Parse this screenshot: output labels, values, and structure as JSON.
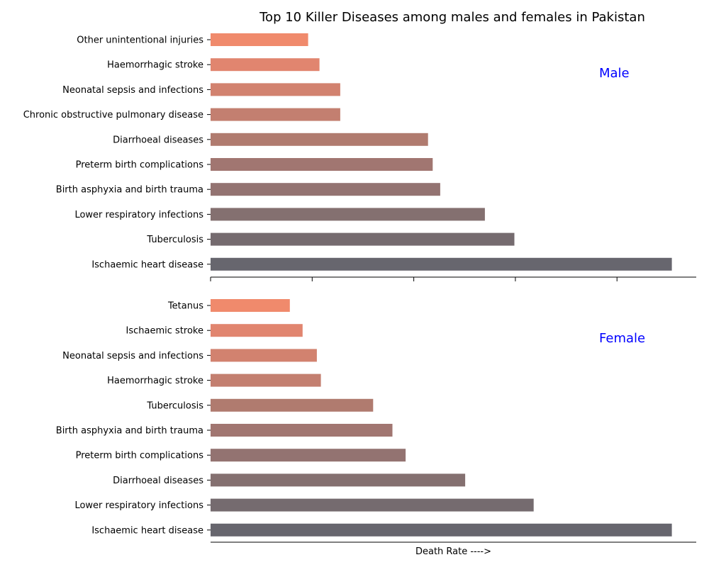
{
  "title": "Top 10 Killer Diseases among males and females in Pakistan",
  "chart_data": [
    {
      "type": "bar",
      "orientation": "horizontal",
      "panel_label": "Male",
      "categories": [
        "Ischaemic heart disease",
        "Tuberculosis",
        "Lower respiratory infections",
        "Birth asphyxia and birth trauma",
        "Preterm birth complications",
        "Diarrhoeal diseases",
        "Chronic obstructive pulmonary disease",
        "Neonatal sepsis and infections",
        "Haemorrhagic stroke",
        "Other unintentional injuries"
      ],
      "values": [
        227,
        149.5,
        135,
        113,
        109.3,
        107,
        63.8,
        63.8,
        53.6,
        48
      ],
      "xlim": [
        0,
        239
      ],
      "xticks": [
        0,
        50,
        100,
        150,
        200
      ],
      "colors": [
        "#67666e",
        "#756b6f",
        "#847070",
        "#937371",
        "#a17671",
        "#b07b6f",
        "#c37f70",
        "#d2826f",
        "#e1856f",
        "#f08a6c"
      ]
    },
    {
      "type": "bar",
      "orientation": "horizontal",
      "panel_label": "Female",
      "xlabel": "Death Rate ---->",
      "categories": [
        "Ischaemic heart disease",
        "Lower respiratory infections",
        "Diarrhoeal diseases",
        "Preterm birth complications",
        "Birth asphyxia and birth trauma",
        "Tuberculosis",
        "Haemorrhagic stroke",
        "Neonatal sepsis and infections",
        "Ischaemic stroke",
        "Tetanus"
      ],
      "values": [
        227,
        159,
        125.3,
        96,
        89.5,
        80,
        54.3,
        52.3,
        45.3,
        39
      ],
      "xlim": [
        0,
        239
      ],
      "colors": [
        "#67666e",
        "#756b6f",
        "#847070",
        "#937371",
        "#a17671",
        "#b07b6f",
        "#c37f70",
        "#d2826f",
        "#e1856f",
        "#f08a6c"
      ]
    }
  ]
}
